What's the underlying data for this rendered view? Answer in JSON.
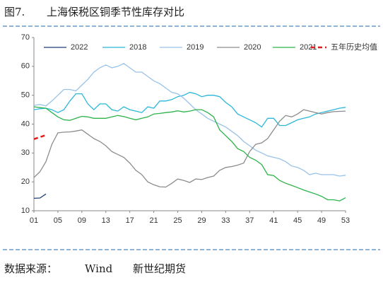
{
  "figure_label": "图7.",
  "source_label": "数据来源：",
  "source": "Wind",
  "publisher": "新世纪期货",
  "chart_data": {
    "type": "line",
    "title": "上海保税区铜季节性库存对比",
    "x": [
      1,
      2,
      3,
      4,
      5,
      6,
      7,
      8,
      9,
      10,
      11,
      12,
      13,
      14,
      15,
      16,
      17,
      18,
      19,
      20,
      21,
      22,
      23,
      24,
      25,
      26,
      27,
      28,
      29,
      30,
      31,
      32,
      33,
      34,
      35,
      36,
      37,
      38,
      39,
      40,
      41,
      42,
      43,
      44,
      45,
      46,
      47,
      48,
      49,
      50,
      51,
      52,
      53
    ],
    "xlim": [
      1,
      53
    ],
    "xticks": [
      {
        "value": 1,
        "label": "01"
      },
      {
        "value": 5,
        "label": "05"
      },
      {
        "value": 9,
        "label": "09"
      },
      13,
      17,
      21,
      25,
      29,
      33,
      37,
      41,
      45,
      49,
      53
    ],
    "ylim": [
      10,
      70
    ],
    "yticks": [
      10,
      20,
      30,
      40,
      50,
      60,
      70
    ],
    "legend": "top",
    "series": [
      {
        "name": "2022",
        "color": "#1f3f7a",
        "style": "solid",
        "values": [
          14.3,
          14.4,
          15.8,
          null,
          null,
          null,
          null,
          null,
          null,
          null,
          null,
          null,
          null,
          null,
          null,
          null,
          null,
          null,
          null,
          null,
          null,
          null,
          null,
          null,
          null,
          null,
          null,
          null,
          null,
          null,
          null,
          null,
          null,
          null,
          null,
          null,
          null,
          null,
          null,
          null,
          null,
          null,
          null,
          null,
          null,
          null,
          null,
          null,
          null,
          null,
          null,
          null,
          null
        ]
      },
      {
        "name": "2018",
        "color": "#2bb7d9",
        "style": "solid",
        "values": [
          45,
          45.3,
          45.5,
          45,
          44,
          45,
          48,
          50.5,
          50.5,
          47,
          45,
          47,
          47,
          45,
          44.5,
          46,
          45,
          44.5,
          44,
          46,
          45.5,
          48,
          48,
          48.5,
          49.5,
          50,
          51,
          50.5,
          49.5,
          50,
          50,
          49.5,
          47.5,
          46,
          43.5,
          42.5,
          41.5,
          40.5,
          39,
          42,
          42,
          39.5,
          39.5,
          40.5,
          41.5,
          42,
          42.5,
          43.5,
          44,
          44.5,
          45,
          45.5,
          45.8
        ]
      },
      {
        "name": "2019",
        "color": "#99c2e8",
        "style": "solid",
        "values": [
          46.5,
          46.8,
          46.3,
          48,
          50,
          52,
          52,
          51.5,
          53.5,
          55.5,
          58,
          59.5,
          60.5,
          59.5,
          60,
          61,
          59.5,
          58,
          58,
          56.5,
          55,
          54,
          52.5,
          51,
          50.5,
          49,
          47,
          45,
          43.5,
          42,
          41,
          40,
          39,
          37.5,
          36,
          34,
          32.5,
          31,
          30,
          29,
          28.5,
          28,
          27,
          25.5,
          25,
          24,
          22.5,
          23,
          22.5,
          22.5,
          22.5,
          22,
          22.3
        ]
      },
      {
        "name": "2020",
        "color": "#8c8c8c",
        "style": "solid",
        "values": [
          21.5,
          23.5,
          27,
          33,
          37,
          37.2,
          37.3,
          37.6,
          38,
          36.5,
          35,
          34,
          32.5,
          30.5,
          29.5,
          28.5,
          26.5,
          24,
          22.5,
          20,
          19,
          18.3,
          18.2,
          19.5,
          21,
          20.5,
          19.8,
          21,
          20.8,
          21.5,
          22,
          24,
          25,
          25.3,
          25.8,
          26.5,
          30.5,
          33,
          33.5,
          35,
          38,
          41,
          43,
          42.5,
          43.5,
          45,
          44.5,
          44,
          43.5,
          44,
          44.3,
          44.4,
          44.5
        ]
      },
      {
        "name": "2021",
        "color": "#2db34a",
        "style": "solid",
        "values": [
          46,
          45.7,
          45.5,
          44,
          42.5,
          41.5,
          41.3,
          42,
          42.7,
          42.5,
          42,
          42,
          42,
          42.5,
          43,
          42.6,
          42,
          41.5,
          42,
          42.5,
          43.5,
          43.7,
          44,
          44.2,
          44.6,
          44.2,
          44.5,
          45,
          45,
          44,
          42.5,
          38,
          36,
          34,
          31.5,
          30.5,
          28.5,
          27.5,
          26,
          22.5,
          22.2,
          20.5,
          19.5,
          18.8,
          18,
          17.2,
          16.5,
          15.8,
          15,
          13.8,
          13.8,
          13.4,
          14.5
        ]
      },
      {
        "name": "五年历史均值",
        "color": "#e01b1b",
        "style": "dashed",
        "values": [
          34.8,
          35.5,
          36.2,
          null,
          null,
          null,
          null,
          null,
          null,
          null,
          null,
          null,
          null,
          null,
          null,
          null,
          null,
          null,
          null,
          null,
          null,
          null,
          null,
          null,
          null,
          null,
          null,
          null,
          null,
          null,
          null,
          null,
          null,
          null,
          null,
          null,
          null,
          null,
          null,
          null,
          null,
          null,
          null,
          null,
          null,
          null,
          null,
          null,
          null,
          null,
          null,
          null,
          null
        ]
      }
    ]
  }
}
